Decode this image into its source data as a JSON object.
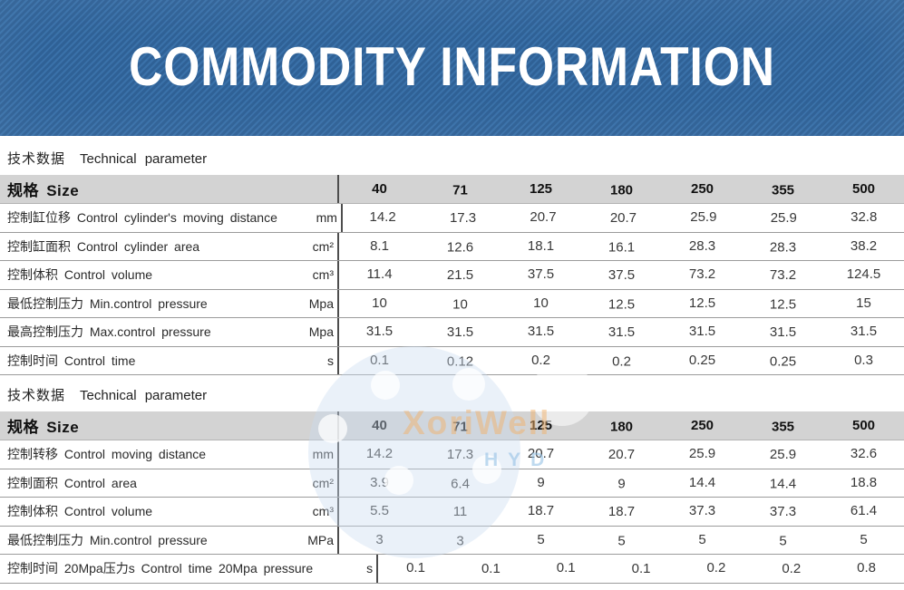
{
  "banner": {
    "title": "COMMODITY INFORMATION",
    "bg_color": "#33689f",
    "stripe_color": "#2f6196",
    "text_color": "#ffffff"
  },
  "watermark": {
    "brand": "XoriWell",
    "sub": "HYD"
  },
  "sections": [
    {
      "heading": {
        "zh": "技术数据",
        "en": "Technical parameter"
      },
      "table": {
        "size_label": "规格 Size",
        "columns": [
          "40",
          "71",
          "125",
          "180",
          "250",
          "355",
          "500"
        ],
        "rows": [
          {
            "label": "控制缸位移 Control cylinder's moving distance",
            "unit": "mm",
            "values": [
              "14.2",
              "17.3",
              "20.7",
              "20.7",
              "25.9",
              "25.9",
              "32.8"
            ]
          },
          {
            "label": "控制缸面积 Control cylinder area",
            "unit": "cm²",
            "values": [
              "8.1",
              "12.6",
              "18.1",
              "16.1",
              "28.3",
              "28.3",
              "38.2"
            ]
          },
          {
            "label": "控制体积 Control volume",
            "unit": "cm³",
            "values": [
              "11.4",
              "21.5",
              "37.5",
              "37.5",
              "73.2",
              "73.2",
              "124.5"
            ]
          },
          {
            "label": "最低控制压力 Min.control pressure",
            "unit": "Mpa",
            "values": [
              "10",
              "10",
              "10",
              "12.5",
              "12.5",
              "12.5",
              "15"
            ]
          },
          {
            "label": "最高控制压力 Max.control pressure",
            "unit": "Mpa",
            "values": [
              "31.5",
              "31.5",
              "31.5",
              "31.5",
              "31.5",
              "31.5",
              "31.5"
            ]
          },
          {
            "label": "控制时间 Control time",
            "unit": "s",
            "values": [
              "0.1",
              "0.12",
              "0.2",
              "0.2",
              "0.25",
              "0.25",
              "0.3"
            ]
          }
        ]
      }
    },
    {
      "heading": {
        "zh": "技术数据",
        "en": "Technical parameter"
      },
      "table": {
        "size_label": "规格 Size",
        "columns": [
          "40",
          "71",
          "125",
          "180",
          "250",
          "355",
          "500"
        ],
        "rows": [
          {
            "label": "控制转移 Control moving distance",
            "unit": "mm",
            "values": [
              "14.2",
              "17.3",
              "20.7",
              "20.7",
              "25.9",
              "25.9",
              "32.6"
            ]
          },
          {
            "label": "控制面积 Control area",
            "unit": "cm²",
            "values": [
              "3.9",
              "6.4",
              "9",
              "9",
              "14.4",
              "14.4",
              "18.8"
            ]
          },
          {
            "label": "控制体积 Control volume",
            "unit": "cm³",
            "values": [
              "5.5",
              "11",
              "18.7",
              "18.7",
              "37.3",
              "37.3",
              "61.4"
            ]
          },
          {
            "label": "最低控制压力 Min.control pressure",
            "unit": "MPa",
            "values": [
              "3",
              "3",
              "5",
              "5",
              "5",
              "5",
              "5"
            ]
          },
          {
            "label": "控制时间 20Mpa压力s Control time 20Mpa pressure",
            "unit": "s",
            "values": [
              "0.1",
              "0.1",
              "0.1",
              "0.1",
              "0.2",
              "0.2",
              "0.8"
            ]
          }
        ]
      }
    }
  ]
}
